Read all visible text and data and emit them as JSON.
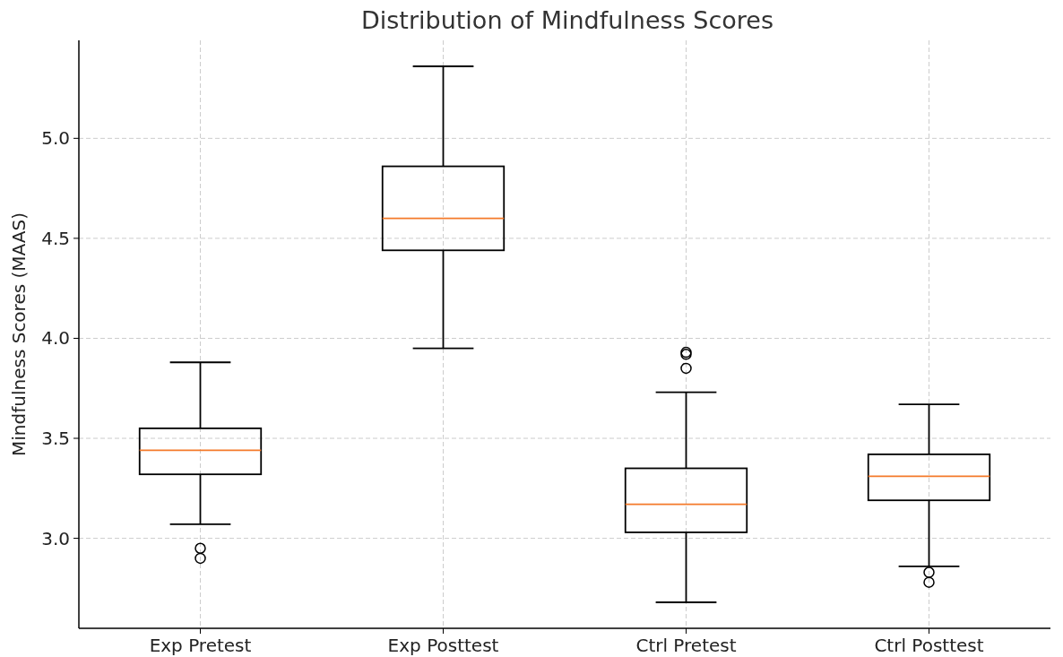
{
  "chart_data": {
    "type": "box",
    "title": "Distribution of Mindfulness Scores",
    "ylabel": "Mindfulness Scores (MAAS)",
    "categories": [
      "Exp Pretest",
      "Exp Posttest",
      "Ctrl Pretest",
      "Ctrl Posttest"
    ],
    "boxes": [
      {
        "low": 3.07,
        "q1": 3.32,
        "median": 3.44,
        "q3": 3.55,
        "high": 3.88,
        "outliers": [
          2.95,
          2.9
        ]
      },
      {
        "low": 3.95,
        "q1": 4.44,
        "median": 4.6,
        "q3": 4.86,
        "high": 5.36
      },
      {
        "low": 2.68,
        "q1": 3.03,
        "median": 3.17,
        "q3": 3.35,
        "high": 3.73,
        "outliers": [
          3.93,
          3.92,
          3.85
        ]
      },
      {
        "low": 2.86,
        "q1": 3.19,
        "median": 3.31,
        "q3": 3.42,
        "high": 3.67,
        "outliers": [
          2.83,
          2.78
        ]
      }
    ],
    "ylim": [
      2.55,
      5.49
    ],
    "yticks": [
      {
        "value": 3,
        "label": "3.0"
      },
      {
        "value": 3.5,
        "label": "3.5"
      },
      {
        "value": 4,
        "label": "4.0"
      },
      {
        "value": 4.5,
        "label": "4.5"
      },
      {
        "value": 5,
        "label": "5.0"
      }
    ],
    "grid": true
  }
}
